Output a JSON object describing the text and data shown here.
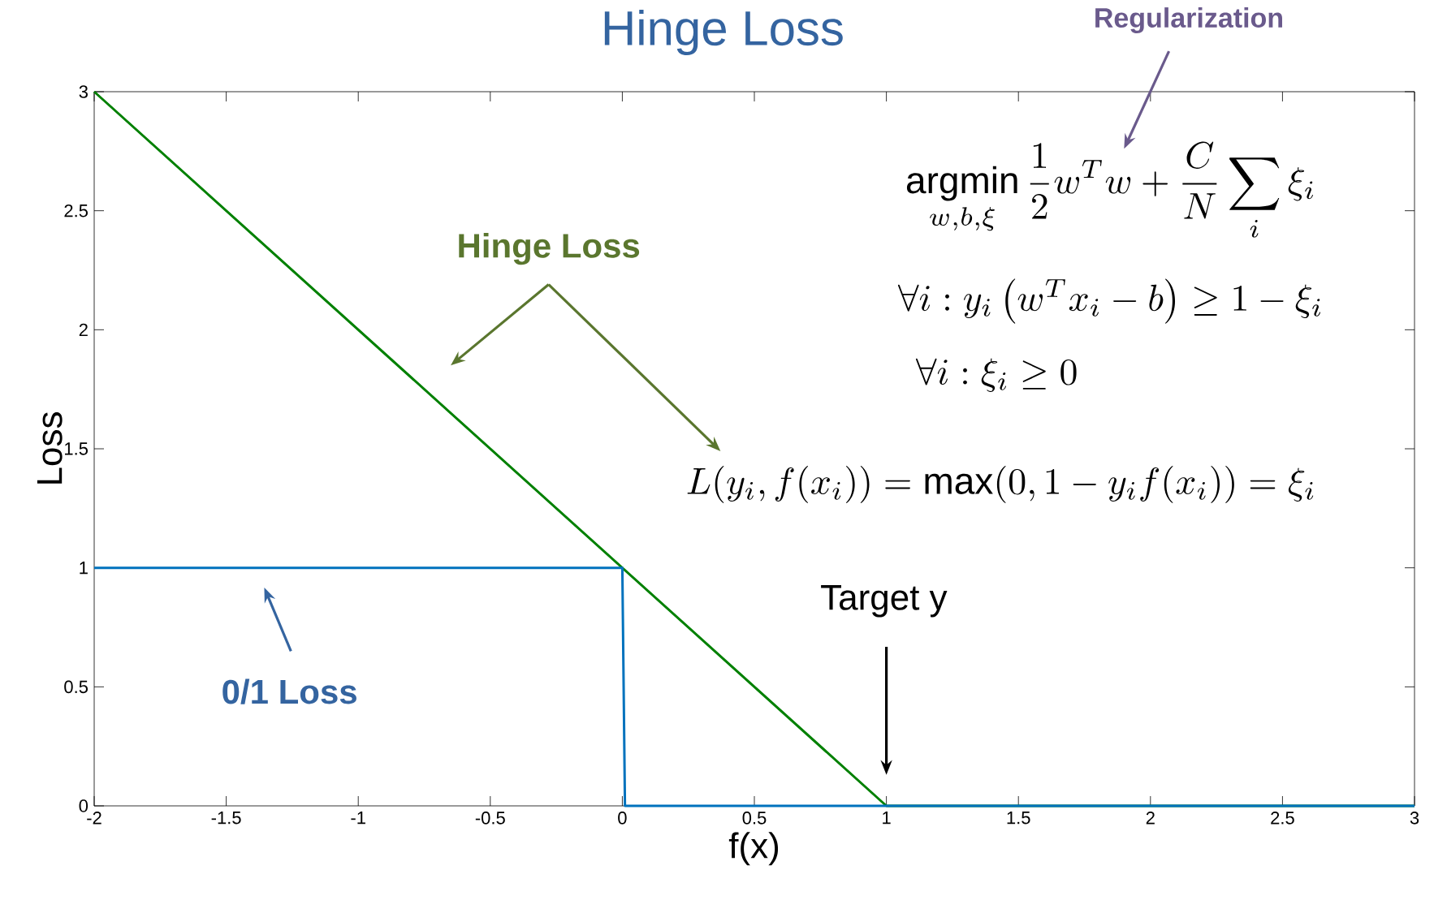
{
  "chart_data": {
    "type": "line",
    "title": "Hinge Loss",
    "xlabel": "f(x)",
    "ylabel": "Loss",
    "series": [
      {
        "color": "#008000",
        "x": [
          -2,
          1,
          3
        ],
        "values": [
          3,
          0,
          0
        ]
      },
      {
        "color": "#0072bd",
        "x": [
          -2,
          0,
          0.01,
          3
        ],
        "values": [
          1,
          1,
          0,
          0
        ]
      }
    ],
    "xlim": [
      -2,
      3
    ],
    "ylim": [
      0,
      3
    ],
    "xticks": [
      -2,
      -1.5,
      -1,
      -0.5,
      0,
      0.5,
      1,
      1.5,
      2,
      2.5,
      3
    ],
    "yticks": [
      0,
      0.5,
      1,
      1.5,
      2,
      2.5,
      3
    ],
    "grid": false,
    "marker": "none",
    "line_style": "solid",
    "annotations": [
      "Regularization",
      "Hinge Loss",
      "0/1 Loss",
      "Target y",
      "\\mathop{\\mathrm{argmin}}\\limits_{w,b,\\xi}\\frac{1}{2}w^{T}w+\\frac{C}{N}\\sum_{i}\\xi_{i}",
      "\\forall i: y_{i}\\left(w^{T}x_{i}-b\\right)\\geq 1-\\xi_{i}",
      "\\forall i: \\xi_{i}\\geq 0",
      "L(y_{i},f(x_{i}))=\\max(0,1-y_{i}f(x_{i}))=\\xi_{i}"
    ]
  }
}
